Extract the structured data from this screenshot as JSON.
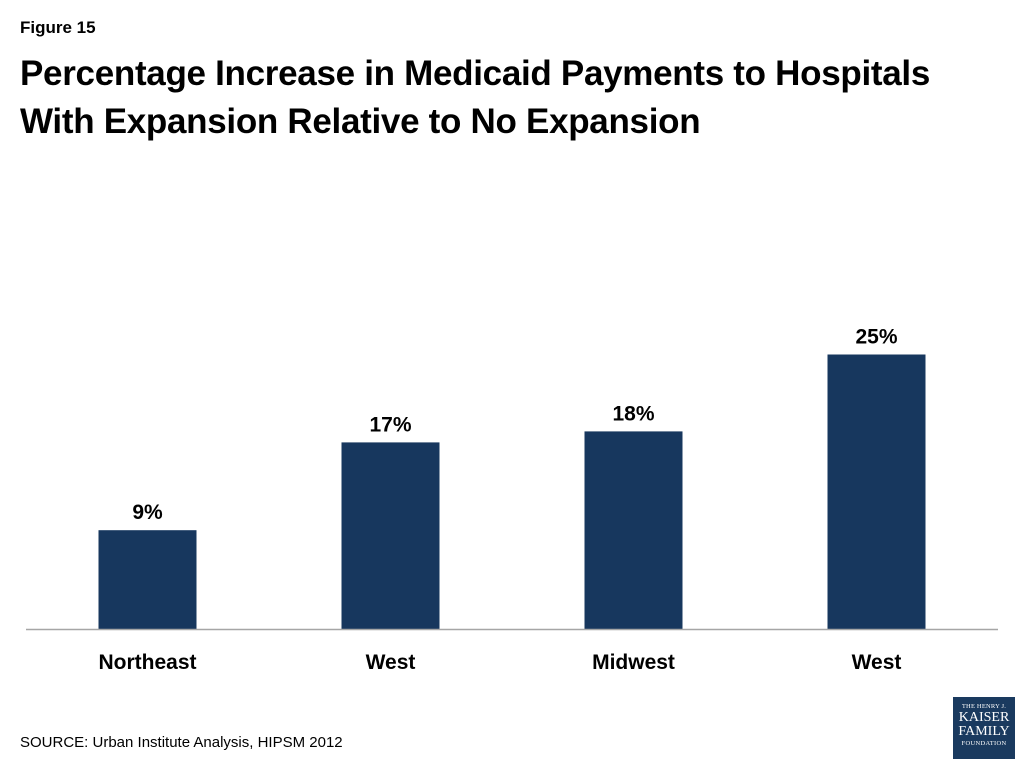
{
  "figure_label": "Figure 15",
  "title_lines": [
    "Percentage Increase in Medicaid Payments to Hospitals",
    "With Expansion Relative to No Expansion"
  ],
  "source": "SOURCE: Urban Institute Analysis, HIPSM 2012",
  "logo": {
    "line1": "THE HENRY J.",
    "line2": "KAISER",
    "line3": "FAMILY",
    "line4": "FOUNDATION"
  },
  "colors": {
    "bar": "#17375e",
    "axis": "#a6a6a6"
  },
  "chart_data": {
    "type": "bar",
    "categories": [
      "Northeast",
      "West",
      "Midwest",
      "West"
    ],
    "values": [
      9,
      17,
      18,
      25
    ],
    "data_labels": [
      "9%",
      "17%",
      "18%",
      "25%"
    ],
    "ylim": [
      0,
      33.7
    ],
    "grid": false,
    "legend": "none",
    "title": "Percentage Increase in Medicaid Payments to Hospitals With Expansion Relative to No Expansion",
    "xlabel": "",
    "ylabel": ""
  }
}
